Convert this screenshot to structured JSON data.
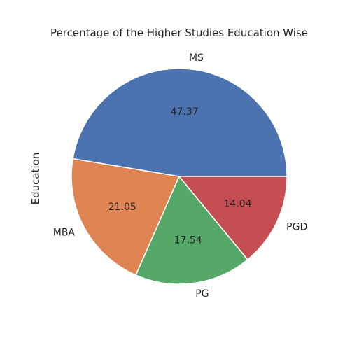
{
  "chart_data": {
    "type": "pie",
    "title": "Percentage of the Higher Studies Education Wise",
    "ylabel": "Education",
    "start_angle_deg": 0,
    "direction": "counterclockwise",
    "slices": [
      {
        "label": "MS",
        "value": 47.37,
        "display": "47.37",
        "color": "#4c72b0"
      },
      {
        "label": "MBA",
        "value": 21.05,
        "display": "21.05",
        "color": "#dd8452"
      },
      {
        "label": "PG",
        "value": 17.54,
        "display": "17.54",
        "color": "#55a868"
      },
      {
        "label": "PGD",
        "value": 14.04,
        "display": "14.04",
        "color": "#c44e52"
      }
    ]
  }
}
